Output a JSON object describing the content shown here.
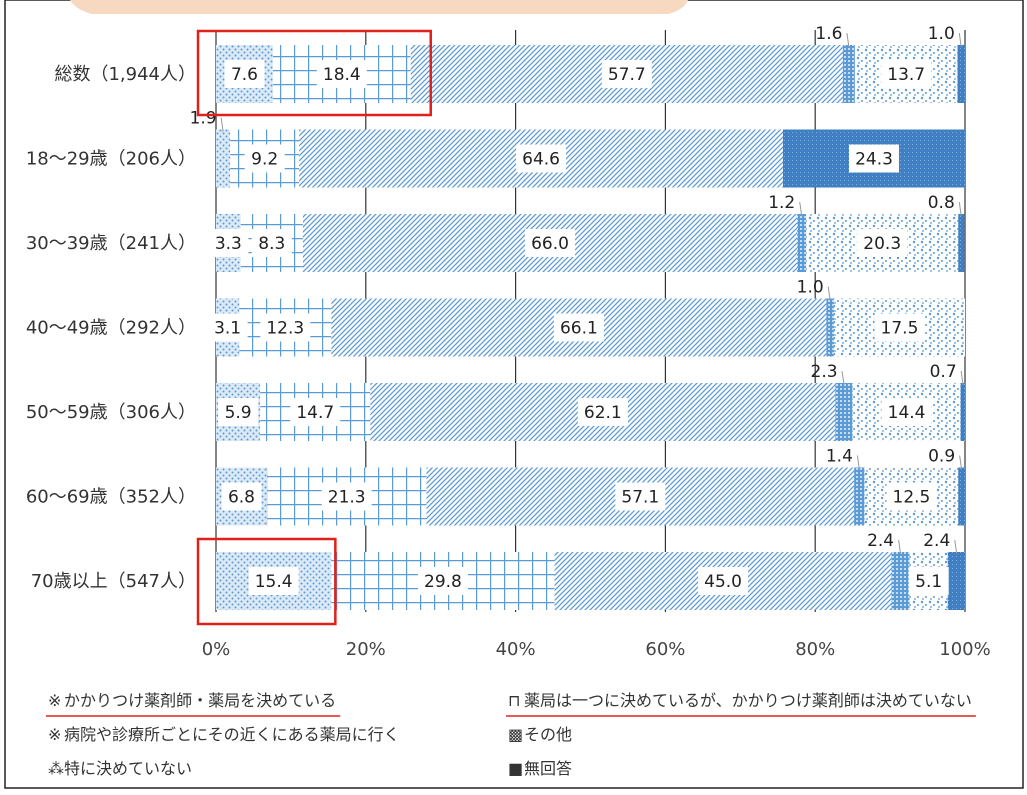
{
  "colors": {
    "accent_blue": "#5b9bd5",
    "highlight_red": "#e0201b",
    "top_band": "#f7d9c2"
  },
  "chart_data": {
    "type": "bar",
    "orientation": "horizontal",
    "stacked": true,
    "categories": [
      "総数（1,944人）",
      "18～29歳（206人）",
      "30～39歳（241人）",
      "40～49歳（292人）",
      "50～59歳（306人）",
      "60～69歳（352人）",
      "70歳以上（547人）"
    ],
    "series": [
      {
        "name": "かかりつけ薬剤師・薬局を決めている",
        "values": [
          7.6,
          1.9,
          3.3,
          3.1,
          5.9,
          6.8,
          15.4
        ],
        "labels": [
          "7.6",
          "1.9",
          "3.3",
          "3.1",
          "5.9",
          "6.8",
          "15.4"
        ]
      },
      {
        "name": "薬局は一つに決めているが、かかりつけ薬剤師は決めていない",
        "values": [
          18.4,
          9.2,
          8.3,
          12.3,
          14.7,
          21.3,
          29.8
        ],
        "labels": [
          "18.4",
          "9.2",
          "8.3",
          "12.3",
          "14.7",
          "21.3",
          "29.8"
        ]
      },
      {
        "name": "病院や診療所ごとにその近くにある薬局に行く",
        "values": [
          57.7,
          64.6,
          66.0,
          66.1,
          62.1,
          57.1,
          45.0
        ],
        "labels": [
          "57.7",
          "64.6",
          "66.0",
          "66.1",
          "62.1",
          "57.1",
          "45.0"
        ]
      },
      {
        "name": "その他",
        "values": [
          1.6,
          0,
          1.2,
          1.0,
          2.3,
          1.4,
          2.4
        ],
        "labels": [
          "1.6",
          "",
          "1.2",
          "1.0",
          "2.3",
          "1.4",
          "2.4"
        ]
      },
      {
        "name": "特に決めていない",
        "values": [
          13.7,
          0,
          20.3,
          17.5,
          14.4,
          12.5,
          5.1
        ],
        "labels": [
          "13.7",
          "",
          "20.3",
          "17.5",
          "14.4",
          "12.5",
          "5.1"
        ]
      },
      {
        "name": "無回答",
        "values": [
          1.0,
          24.3,
          0.8,
          0,
          0.7,
          0.9,
          2.4
        ],
        "labels": [
          "1.0",
          "24.3",
          "0.8",
          "",
          "0.7",
          "0.9",
          "2.4"
        ]
      }
    ],
    "xlim": [
      0,
      100
    ],
    "x_ticks": [
      "0%",
      "20%",
      "40%",
      "60%",
      "80%",
      "100%"
    ],
    "legend_position": "bottom",
    "legend": [
      {
        "symbol": "※",
        "label": "かかりつけ薬剤師・薬局を決めている",
        "underlined": true
      },
      {
        "symbol": "⊓",
        "label": "薬局は一つに決めているが、かかりつけ薬剤師は決めていない",
        "underlined": true
      },
      {
        "symbol": "※",
        "label": "病院や診療所ごとにその近くにある薬局に行く",
        "underlined": false
      },
      {
        "symbol": "▩",
        "label": "その他",
        "underlined": false
      },
      {
        "symbol": "⁂",
        "label": "特に決めていない",
        "underlined": false
      },
      {
        "symbol": "■",
        "label": "無回答",
        "underlined": false
      }
    ],
    "highlighted": [
      "総数（1,944人）：かかりつけ薬剤師・薬局を決めている＋薬局は一つに決めているが…",
      "70歳以上（547人）：かかりつけ薬剤師・薬局を決めている"
    ]
  }
}
